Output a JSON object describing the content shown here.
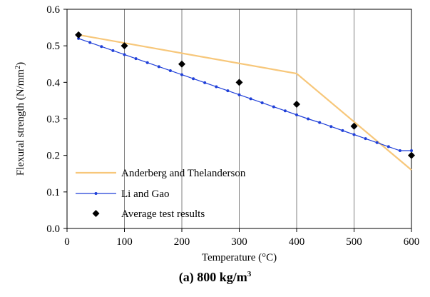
{
  "chart_data": {
    "type": "line",
    "xlabel": "Temperature (°C)",
    "ylabel_main": "Flexural strength (N/mm",
    "ylabel_sup": "2",
    "ylabel_close": ")",
    "xlim": [
      0,
      600
    ],
    "ylim": [
      0.0,
      0.6
    ],
    "x_ticks": [
      0,
      100,
      200,
      300,
      400,
      500,
      600
    ],
    "x_tick_labels": [
      "0",
      "100",
      "200",
      "300",
      "400",
      "500",
      "600"
    ],
    "y_ticks": [
      0.0,
      0.1,
      0.2,
      0.3,
      0.4,
      0.5,
      0.6
    ],
    "y_tick_labels": [
      "0.0",
      "0.1",
      "0.2",
      "0.3",
      "0.4",
      "0.5",
      "0.6"
    ],
    "grid": "vertical",
    "legend_position": "bottom-left",
    "series": [
      {
        "name": "Anderberg and Thelanderson",
        "color": "#f7c77a",
        "marker": "none",
        "x": [
          20,
          400,
          600
        ],
        "y": [
          0.53,
          0.424,
          0.16
        ]
      },
      {
        "name": "Li and Gao",
        "color": "#1f3fd8",
        "marker": "dot",
        "x": [
          20,
          40,
          60,
          80,
          100,
          120,
          140,
          160,
          180,
          200,
          220,
          240,
          260,
          280,
          300,
          320,
          340,
          360,
          380,
          400,
          420,
          440,
          460,
          480,
          500,
          520,
          540,
          560,
          580,
          600
        ],
        "y": [
          0.52,
          0.509,
          0.498,
          0.487,
          0.476,
          0.465,
          0.454,
          0.443,
          0.432,
          0.421,
          0.41,
          0.399,
          0.388,
          0.377,
          0.366,
          0.355,
          0.344,
          0.333,
          0.322,
          0.311,
          0.3,
          0.29,
          0.279,
          0.268,
          0.257,
          0.246,
          0.235,
          0.224,
          0.213,
          0.213
        ]
      },
      {
        "name": "Average test results",
        "color": "#000000",
        "marker": "diamond",
        "x": [
          20,
          100,
          200,
          300,
          400,
          500,
          600
        ],
        "y": [
          0.53,
          0.5,
          0.45,
          0.4,
          0.34,
          0.28,
          0.2
        ]
      }
    ]
  },
  "caption": {
    "main": "(a) 800 kg/m",
    "sup": "3"
  }
}
